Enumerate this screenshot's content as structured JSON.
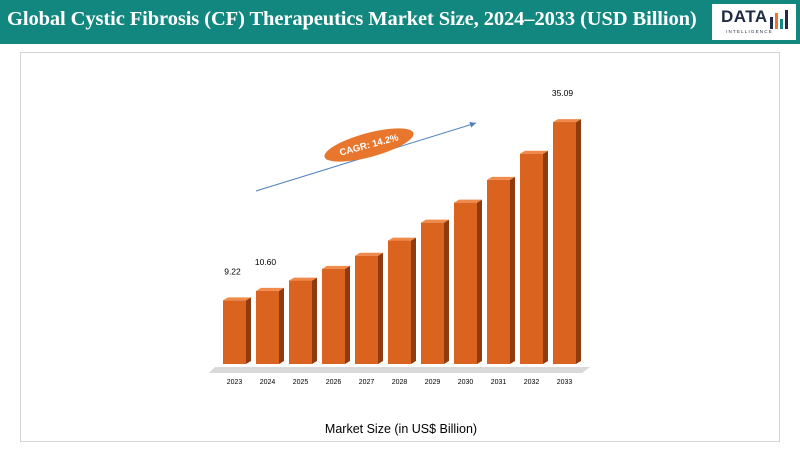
{
  "header": {
    "title": "Global Cystic Fibrosis (CF) Therapeutics Market Size, 2024–2033 (USD Billion)",
    "background_color": "#12877f",
    "logo": {
      "word": "DATA",
      "subtitle": "INTELLIGENCE",
      "icon": "bar-chart-logo-icon"
    }
  },
  "chart_data": {
    "type": "bar",
    "categories": [
      "2023",
      "2024",
      "2025",
      "2026",
      "2027",
      "2028",
      "2029",
      "2030",
      "2031",
      "2032",
      "2033"
    ],
    "series": [
      {
        "values": [
          9.22,
          10.6,
          12.1,
          13.8,
          15.7,
          17.9,
          20.5,
          23.4,
          26.7,
          30.5,
          35.09
        ]
      }
    ],
    "data_labels": {
      "0": "9.22",
      "1": "10.60",
      "10": "35.09"
    },
    "xlabel": "Market Size (in US$ Billion)",
    "ylabel": "",
    "ylim": [
      0,
      38
    ],
    "grid": false,
    "legend": "none",
    "annotation": {
      "text": "CAGR: 14.2%",
      "type": "arrow"
    },
    "colors": {
      "bar_front": "#d9631f",
      "bar_top": "#f08a4b",
      "bar_side": "#8e3c0f",
      "cagr_fill": "#e8762d",
      "arrow": "#4f81bd",
      "floor": "#d9d9d9"
    }
  }
}
